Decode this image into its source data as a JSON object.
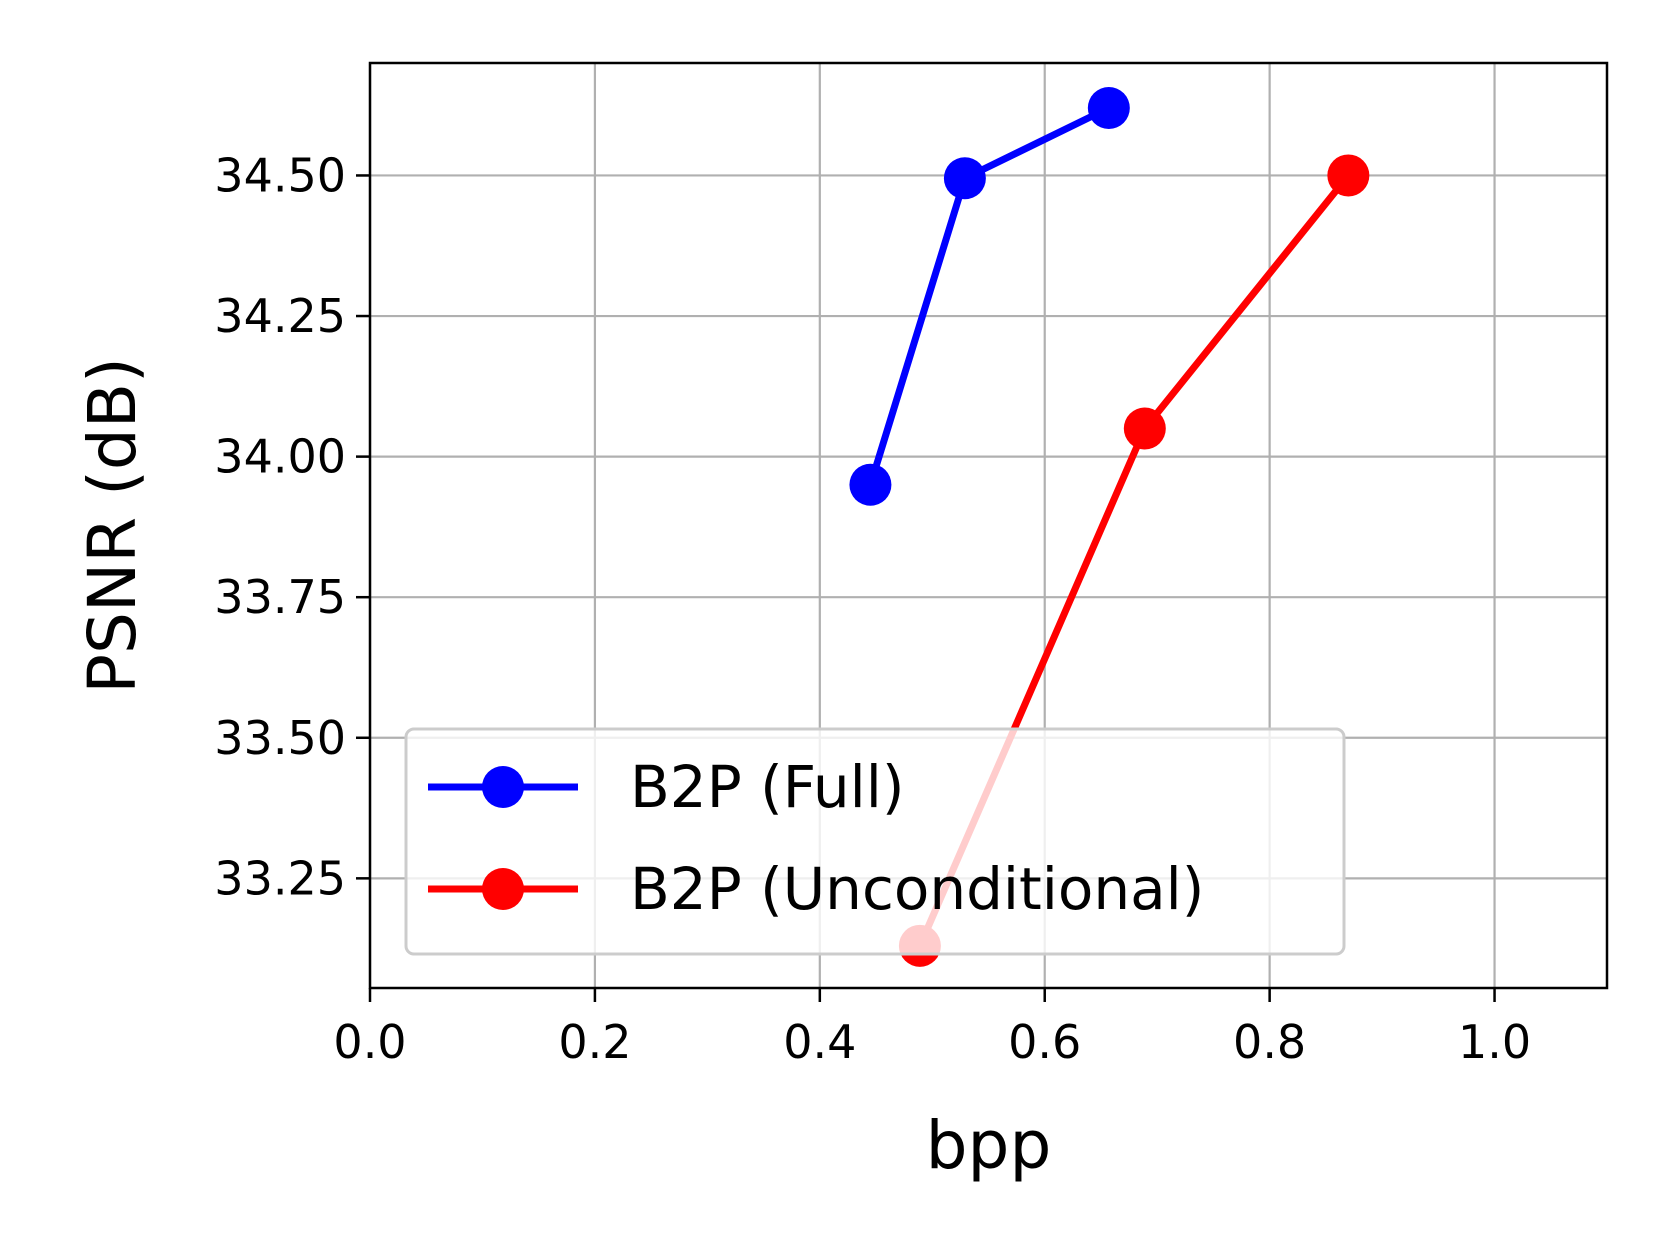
{
  "chart_data": {
    "type": "line",
    "title": "",
    "xlabel": "bpp",
    "ylabel": "PSNR (dB)",
    "xlim": [
      0.0,
      1.1
    ],
    "ylim": [
      33.055,
      34.7
    ],
    "xticks": [
      "0.0",
      "0.2",
      "0.4",
      "0.6",
      "0.8",
      "1.0"
    ],
    "yticks": [
      "33.25",
      "33.50",
      "33.75",
      "34.00",
      "34.25",
      "34.50"
    ],
    "grid": true,
    "legend_position": "lower-left",
    "series": [
      {
        "name": "B2P (Full)",
        "color": "#0000ff",
        "marker": "circle",
        "x": [
          0.445,
          0.529,
          0.657
        ],
        "y": [
          33.95,
          34.495,
          34.62
        ]
      },
      {
        "name": "B2P (Unconditional)",
        "color": "#ff0000",
        "marker": "circle",
        "x": [
          0.489,
          0.689,
          0.87
        ],
        "y": [
          33.13,
          34.05,
          34.5
        ]
      }
    ]
  }
}
